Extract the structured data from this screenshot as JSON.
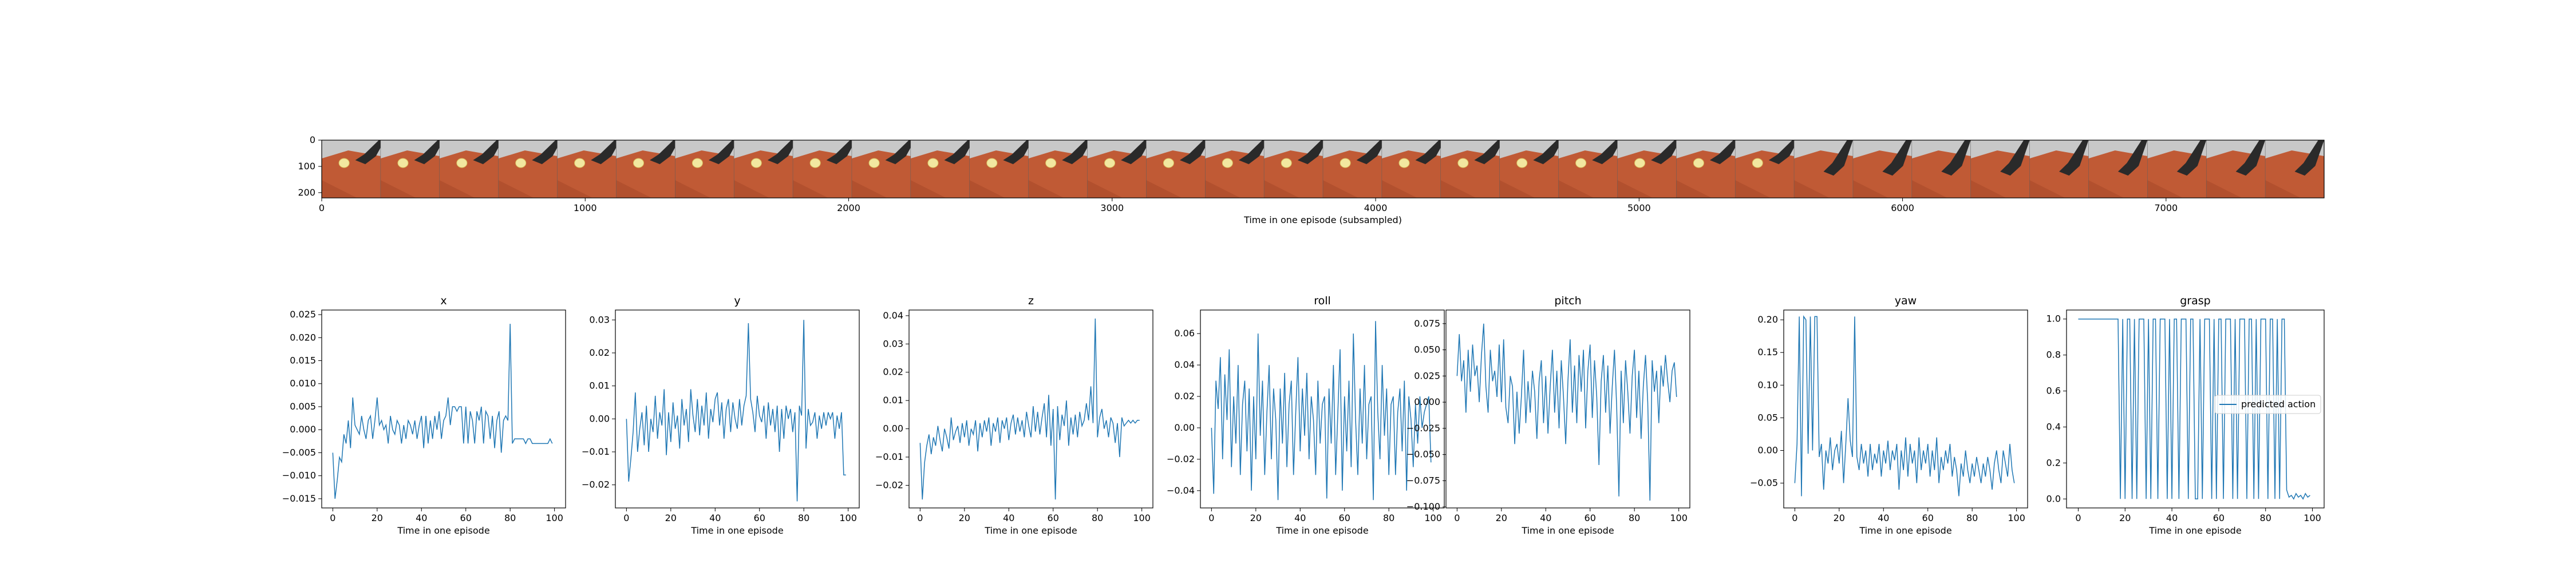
{
  "image_strip": {
    "xlabel": "Time in one episode (subsampled)",
    "x_ticks": [
      "0",
      "1000",
      "2000",
      "3000",
      "4000",
      "5000",
      "6000",
      "7000"
    ],
    "y_ticks": [
      "0",
      "100",
      "200"
    ],
    "frame_count": 34,
    "colors": {
      "sky": "#c8c8c8",
      "table": "#c05a35",
      "arm": "#2a2a2a",
      "object": "#f2e8a0"
    }
  },
  "chart_data": [
    {
      "type": "line",
      "title": "x",
      "xlabel": "Time in one episode",
      "xlim": [
        -5,
        105
      ],
      "ylim": [
        -0.017,
        0.026
      ],
      "x_ticks": [
        "0",
        "20",
        "40",
        "60",
        "80",
        "100"
      ],
      "y_ticks": [
        -0.015,
        -0.01,
        -0.005,
        0.0,
        0.005,
        0.01,
        0.015,
        0.02,
        0.025
      ],
      "y_tick_labels": [
        "−0.015",
        "−0.010",
        "−0.005",
        "0.000",
        "0.005",
        "0.010",
        "0.015",
        "0.020",
        "0.025"
      ],
      "color": "#1f77b4",
      "y": [
        -0.005,
        -0.015,
        -0.011,
        -0.006,
        -0.007,
        -0.001,
        -0.003,
        0.002,
        -0.004,
        0.007,
        0.001,
        0.0,
        -0.001,
        0.003,
        0.0,
        -0.002,
        0.002,
        0.003,
        -0.002,
        0.002,
        0.007,
        0.001,
        0.002,
        0.0,
        0.001,
        -0.003,
        0.003,
        0.0,
        -0.001,
        0.002,
        0.001,
        -0.003,
        0.001,
        -0.002,
        0.002,
        0.001,
        -0.001,
        0.002,
        -0.002,
        0.001,
        0.003,
        -0.004,
        0.003,
        -0.003,
        0.002,
        -0.002,
        0.003,
        0.0,
        0.004,
        -0.002,
        0.002,
        0.003,
        0.007,
        0.001,
        0.005,
        0.005,
        0.004,
        0.005,
        0.005,
        -0.003,
        0.005,
        -0.003,
        0.004,
        0.002,
        -0.003,
        0.004,
        0.002,
        0.005,
        -0.003,
        0.004,
        0.003,
        -0.002,
        0.003,
        -0.004,
        0.002,
        0.004,
        -0.005,
        0.002,
        0.003,
        0.002,
        0.023,
        -0.003,
        -0.002,
        -0.002,
        -0.002,
        -0.002,
        -0.002,
        -0.003,
        -0.002,
        -0.002,
        -0.003,
        -0.003,
        -0.003,
        -0.003,
        -0.003,
        -0.003,
        -0.003,
        -0.003,
        -0.002,
        -0.003
      ]
    },
    {
      "type": "line",
      "title": "y",
      "xlabel": "Time in one episode",
      "xlim": [
        -5,
        105
      ],
      "ylim": [
        -0.027,
        0.033
      ],
      "x_ticks": [
        "0",
        "20",
        "40",
        "60",
        "80",
        "100"
      ],
      "y_ticks": [
        -0.02,
        -0.01,
        0.0,
        0.01,
        0.02,
        0.03
      ],
      "y_tick_labels": [
        "−0.02",
        "−0.01",
        "0.00",
        "0.01",
        "0.02",
        "0.03"
      ],
      "color": "#1f77b4",
      "y": [
        0.0,
        -0.019,
        -0.012,
        -0.004,
        0.008,
        -0.01,
        -0.003,
        0.002,
        -0.008,
        0.004,
        -0.01,
        0.0,
        -0.004,
        0.007,
        -0.006,
        0.002,
        -0.002,
        0.009,
        -0.011,
        0.002,
        -0.007,
        0.005,
        -0.003,
        0.001,
        -0.009,
        0.006,
        -0.002,
        0.003,
        -0.007,
        0.009,
        0.001,
        -0.004,
        0.006,
        -0.005,
        0.004,
        -0.002,
        0.008,
        -0.006,
        0.003,
        -0.001,
        0.006,
        0.008,
        -0.002,
        0.005,
        -0.006,
        0.003,
        0.006,
        -0.004,
        0.005,
        0.0,
        -0.003,
        0.006,
        -0.002,
        0.004,
        0.007,
        0.029,
        0.006,
        0.002,
        -0.004,
        0.007,
        0.001,
        -0.001,
        0.004,
        -0.006,
        0.005,
        -0.002,
        0.003,
        -0.004,
        0.004,
        -0.01,
        0.003,
        -0.006,
        0.004,
        0.0,
        0.003,
        -0.004,
        0.002,
        -0.025,
        0.004,
        0.001,
        0.03,
        -0.009,
        0.003,
        -0.002,
        -0.001,
        0.002,
        -0.006,
        0.001,
        -0.003,
        0.002,
        -0.002,
        0.002,
        0.0,
        0.002,
        -0.006,
        0.001,
        -0.003,
        0.002,
        -0.017,
        -0.017
      ]
    },
    {
      "type": "line",
      "title": "z",
      "xlabel": "Time in one episode",
      "xlim": [
        -5,
        105
      ],
      "ylim": [
        -0.028,
        0.042
      ],
      "x_ticks": [
        "0",
        "20",
        "40",
        "60",
        "80",
        "100"
      ],
      "y_ticks": [
        -0.02,
        -0.01,
        0.0,
        0.01,
        0.02,
        0.03,
        0.04
      ],
      "y_tick_labels": [
        "−0.02",
        "−0.01",
        "0.00",
        "0.01",
        "0.02",
        "0.03",
        "0.04"
      ],
      "color": "#1f77b4",
      "y": [
        -0.005,
        -0.025,
        -0.012,
        -0.006,
        -0.002,
        -0.009,
        -0.003,
        -0.006,
        0.001,
        -0.004,
        -0.008,
        0.0,
        -0.003,
        -0.007,
        0.004,
        -0.004,
        -0.001,
        0.001,
        -0.005,
        0.002,
        -0.003,
        0.003,
        -0.006,
        0.0,
        -0.002,
        0.003,
        -0.008,
        0.002,
        -0.003,
        0.003,
        -0.001,
        0.004,
        -0.006,
        0.002,
        -0.001,
        0.004,
        -0.005,
        0.003,
        0.0,
        0.004,
        -0.004,
        0.002,
        0.005,
        -0.002,
        0.004,
        -0.001,
        0.003,
        -0.003,
        0.006,
        0.001,
        -0.003,
        0.008,
        -0.001,
        0.006,
        -0.002,
        0.004,
        0.009,
        -0.003,
        0.012,
        -0.006,
        0.007,
        -0.025,
        0.008,
        -0.004,
        0.005,
        0.001,
        0.01,
        -0.006,
        0.004,
        -0.002,
        0.005,
        -0.003,
        0.006,
        0.001,
        0.003,
        0.009,
        0.003,
        0.015,
        0.002,
        0.039,
        -0.003,
        0.004,
        0.007,
        0.0,
        0.003,
        -0.003,
        0.004,
        0.002,
        -0.005,
        0.002,
        -0.01,
        0.004,
        0.001,
        0.002,
        0.003,
        0.002,
        0.003,
        0.002,
        0.003,
        0.003
      ]
    },
    {
      "type": "line",
      "title": "roll",
      "xlabel": "Time in one episode",
      "xlim": [
        -5,
        105
      ],
      "ylim": [
        -0.051,
        0.075
      ],
      "x_ticks": [
        "0",
        "20",
        "40",
        "60",
        "80",
        "100"
      ],
      "y_ticks": [
        -0.04,
        -0.02,
        0.0,
        0.02,
        0.04,
        0.06
      ],
      "y_tick_labels": [
        "−0.04",
        "−0.02",
        "0.00",
        "0.02",
        "0.04",
        "0.06"
      ],
      "color": "#1f77b4",
      "y": [
        0.0,
        -0.042,
        0.03,
        0.012,
        0.045,
        -0.02,
        0.034,
        0.005,
        0.05,
        -0.025,
        0.02,
        -0.01,
        0.04,
        -0.03,
        0.015,
        0.03,
        -0.015,
        0.025,
        -0.04,
        0.02,
        -0.02,
        0.06,
        -0.005,
        0.03,
        -0.03,
        0.01,
        0.04,
        -0.02,
        0.025,
        0.005,
        -0.046,
        0.025,
        -0.01,
        0.035,
        -0.025,
        0.015,
        0.03,
        -0.03,
        0.01,
        0.045,
        -0.015,
        0.025,
        -0.005,
        0.035,
        -0.02,
        0.02,
        0.005,
        -0.03,
        0.03,
        -0.01,
        0.015,
        0.02,
        -0.045,
        0.025,
        -0.01,
        0.04,
        -0.03,
        0.01,
        0.05,
        -0.04,
        0.02,
        -0.015,
        0.03,
        -0.025,
        0.06,
        0.005,
        -0.03,
        0.025,
        -0.01,
        0.04,
        -0.02,
        0.015,
        0.02,
        -0.046,
        0.068,
        0.01,
        -0.02,
        0.04,
        -0.005,
        0.025,
        -0.03,
        0.015,
        0.02,
        -0.03,
        0.01,
        0.025,
        -0.015,
        0.03,
        -0.04,
        0.02,
        0.005,
        -0.025,
        0.015,
        -0.01,
        0.02,
        0.0,
        0.01,
        0.015,
        0.02,
        -0.022
      ]
    },
    {
      "type": "line",
      "title": "pitch",
      "xlabel": "Time in one episode",
      "xlim": [
        -5,
        105
      ],
      "ylim": [
        -0.101,
        0.088
      ],
      "x_ticks": [
        "0",
        "20",
        "40",
        "60",
        "80",
        "100"
      ],
      "y_ticks": [
        -0.1,
        -0.075,
        -0.05,
        -0.025,
        0.0,
        0.025,
        0.05,
        0.075
      ],
      "y_tick_labels": [
        "−0.100",
        "−0.075",
        "−0.050",
        "−0.025",
        "0.000",
        "0.025",
        "0.050",
        "0.075"
      ],
      "color": "#1f77b4",
      "y": [
        0.025,
        0.065,
        0.02,
        0.04,
        -0.01,
        0.05,
        0.01,
        0.055,
        0.025,
        0.035,
        0.0,
        0.045,
        0.075,
        0.015,
        -0.01,
        0.05,
        0.02,
        0.03,
        0.005,
        0.055,
        0.0,
        0.06,
        -0.005,
        -0.02,
        0.025,
        0.015,
        -0.04,
        0.01,
        -0.03,
        0.005,
        0.05,
        -0.02,
        0.02,
        -0.01,
        0.03,
        0.01,
        -0.035,
        0.02,
        0.04,
        -0.02,
        0.025,
        -0.03,
        0.015,
        0.05,
        -0.01,
        0.03,
        -0.025,
        0.04,
        0.005,
        -0.04,
        0.02,
        0.06,
        -0.01,
        0.035,
        -0.02,
        0.045,
        0.01,
        0.05,
        -0.025,
        0.03,
        0.055,
        -0.015,
        0.04,
        0.005,
        -0.06,
        0.02,
        0.045,
        -0.01,
        0.035,
        -0.03,
        0.015,
        0.05,
        -0.005,
        -0.09,
        0.03,
        -0.02,
        0.04,
        0.01,
        -0.03,
        0.025,
        0.05,
        -0.015,
        0.03,
        -0.035,
        0.015,
        0.045,
        0.0,
        -0.094,
        0.04,
        0.01,
        0.03,
        -0.02,
        0.035,
        0.015,
        0.045,
        0.02,
        0.0,
        0.03,
        0.038,
        0.005
      ]
    },
    {
      "type": "line",
      "title": "yaw",
      "xlabel": "Time in one episode",
      "xlim": [
        -5,
        105
      ],
      "ylim": [
        -0.088,
        0.215
      ],
      "x_ticks": [
        "0",
        "20",
        "40",
        "60",
        "80",
        "100"
      ],
      "y_ticks": [
        -0.05,
        0.0,
        0.05,
        0.1,
        0.15,
        0.2
      ],
      "y_tick_labels": [
        "−0.05",
        "0.00",
        "0.05",
        "0.10",
        "0.15",
        "0.20"
      ],
      "color": "#1f77b4",
      "y": [
        -0.05,
        0.01,
        0.205,
        -0.07,
        0.205,
        0.2,
        -0.005,
        0.205,
        0.0,
        0.205,
        0.205,
        -0.01,
        0.01,
        -0.06,
        0.0,
        -0.02,
        0.02,
        -0.03,
        0.0,
        0.01,
        -0.02,
        0.03,
        -0.05,
        0.01,
        0.08,
        0.015,
        -0.01,
        0.205,
        -0.01,
        -0.03,
        0.01,
        -0.02,
        0.0,
        -0.04,
        0.01,
        -0.03,
        -0.005,
        -0.02,
        0.01,
        -0.04,
        0.0,
        -0.02,
        0.015,
        -0.03,
        0.0,
        -0.015,
        0.01,
        -0.06,
        0.0,
        -0.03,
        0.02,
        -0.04,
        0.01,
        -0.02,
        0.0,
        -0.05,
        0.02,
        -0.03,
        0.0,
        -0.02,
        0.01,
        -0.04,
        0.0,
        -0.03,
        0.02,
        -0.05,
        -0.01,
        -0.03,
        0.0,
        -0.02,
        0.01,
        -0.04,
        -0.01,
        -0.03,
        -0.07,
        -0.02,
        -0.04,
        0.0,
        -0.03,
        -0.05,
        -0.02,
        -0.04,
        -0.01,
        -0.03,
        -0.05,
        -0.02,
        -0.04,
        -0.01,
        -0.03,
        -0.06,
        -0.02,
        0.0,
        -0.03,
        -0.05,
        0.0,
        -0.02,
        -0.04,
        0.01,
        -0.03,
        -0.05
      ]
    },
    {
      "type": "line",
      "title": "grasp",
      "xlabel": "Time in one episode",
      "xlim": [
        -5,
        105
      ],
      "ylim": [
        -0.05,
        1.05
      ],
      "x_ticks": [
        "0",
        "20",
        "40",
        "60",
        "80",
        "100"
      ],
      "y_ticks": [
        0.0,
        0.2,
        0.4,
        0.6,
        0.8,
        1.0
      ],
      "y_tick_labels": [
        "0.0",
        "0.2",
        "0.4",
        "0.6",
        "0.8",
        "1.0"
      ],
      "color": "#1f77b4",
      "legend": "predicted action",
      "legend_loc": "center right",
      "y": [
        1,
        1,
        1,
        1,
        1,
        1,
        1,
        1,
        1,
        1,
        1,
        1,
        1,
        1,
        1,
        1,
        1,
        1,
        0,
        1,
        0,
        1,
        1,
        0,
        1,
        0,
        1,
        1,
        1,
        0,
        1,
        0,
        1,
        1,
        0,
        1,
        1,
        1,
        0,
        1,
        0,
        1,
        1,
        0,
        1,
        1,
        1,
        0,
        1,
        1,
        0,
        0,
        1,
        0,
        1,
        1,
        1,
        0,
        1,
        0,
        1,
        1,
        0,
        1,
        1,
        1,
        0,
        1,
        0,
        1,
        1,
        1,
        0,
        1,
        1,
        0,
        1,
        0,
        1,
        1,
        1,
        0,
        1,
        1,
        0,
        1,
        0,
        1,
        1,
        0.05,
        0.01,
        0.02,
        0.0,
        0.03,
        0.01,
        0.02,
        0.0,
        0.03,
        0.01,
        0.02
      ]
    }
  ]
}
